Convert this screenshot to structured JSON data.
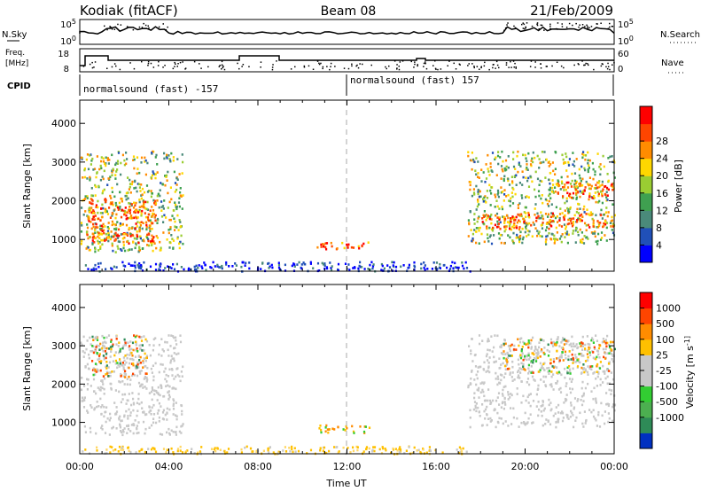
{
  "header": {
    "station": "Kodiak (fitACF)",
    "beam": "Beam 08",
    "date": "21/Feb/2009"
  },
  "strips": {
    "nsky_label": "N.Sky",
    "nsky_ticks": [
      "10^5",
      "10^0"
    ],
    "nsearch_label": "N.Search",
    "nsearch_ticks": [
      "10^5",
      "10^0"
    ],
    "freq_label_1": "Freq.",
    "freq_label_2": "[MHz]",
    "freq_ticks": [
      "18",
      "8"
    ],
    "nave_label": "Nave",
    "nave_ticks": [
      "60",
      "0"
    ],
    "cpid_label": "CPID",
    "cpid_segments": [
      "normalsound (fast) -157",
      "normalsound (fast) 157"
    ]
  },
  "chart_data": [
    {
      "type": "heatmap",
      "title": "",
      "xlabel": "",
      "ylabel": "Slant Range [km]",
      "x_ticks": [
        "00:00",
        "04:00",
        "08:00",
        "12:00",
        "16:00",
        "20:00",
        "00:00"
      ],
      "xlim_hours": [
        0,
        24
      ],
      "y_ticks": [
        1000,
        2000,
        3000,
        4000
      ],
      "ylim": [
        180,
        4600
      ],
      "colorbar_label": "Power [dB]",
      "colorbar_ticks": [
        "4",
        "8",
        "12",
        "16",
        "20",
        "24",
        "28"
      ],
      "colorbar_colors": [
        "#0000ff",
        "#2050b8",
        "#4a8a7a",
        "#3fa050",
        "#9acd32",
        "#ffd700",
        "#ff8c00",
        "#ff4500",
        "#ff0000"
      ],
      "regions": [
        {
          "t0": 0.0,
          "t1": 4.6,
          "r0": 700,
          "r1": 3300,
          "level": "mixed-high"
        },
        {
          "t0": 0.3,
          "t1": 3.5,
          "r0": 900,
          "r1": 2100,
          "level": "high"
        },
        {
          "t0": 10.6,
          "t1": 13.1,
          "r0": 750,
          "r1": 950,
          "level": "high"
        },
        {
          "t0": 0.0,
          "t1": 17.5,
          "r0": 200,
          "r1": 450,
          "level": "low"
        },
        {
          "t0": 17.4,
          "t1": 24.0,
          "r0": 900,
          "r1": 3300,
          "level": "mixed-high"
        },
        {
          "t0": 18.0,
          "t1": 24.0,
          "r0": 1300,
          "r1": 1700,
          "level": "high"
        },
        {
          "t0": 21.0,
          "t1": 24.0,
          "r0": 2100,
          "r1": 2500,
          "level": "high"
        }
      ]
    },
    {
      "type": "heatmap",
      "title": "",
      "xlabel": "Time UT",
      "ylabel": "Slant Range [km]",
      "x_ticks": [
        "00:00",
        "04:00",
        "08:00",
        "12:00",
        "16:00",
        "20:00",
        "00:00"
      ],
      "xlim_hours": [
        0,
        24
      ],
      "y_ticks": [
        1000,
        2000,
        3000,
        4000
      ],
      "ylim": [
        180,
        4600
      ],
      "colorbar_label": "Velocity [m s^-1]",
      "colorbar_ticks": [
        "1000",
        "500",
        "100",
        "25",
        "-25",
        "-100",
        "-500",
        "-1000"
      ],
      "colorbar_colors": [
        "#0030c0",
        "#2e8b57",
        "#4caf50",
        "#32cd32",
        "#c8c8c8",
        "#c8c8c8",
        "#ffc000",
        "#ff8c00",
        "#ff4500",
        "#ff0000"
      ],
      "regions": [
        {
          "t0": 0.0,
          "t1": 4.6,
          "r0": 700,
          "r1": 3300,
          "level": "ground-gray"
        },
        {
          "t0": 0.5,
          "t1": 3.0,
          "r0": 2200,
          "r1": 3300,
          "level": "mixed-pos"
        },
        {
          "t0": 10.6,
          "t1": 13.1,
          "r0": 750,
          "r1": 950,
          "level": "mixed"
        },
        {
          "t0": 0.0,
          "t1": 17.5,
          "r0": 200,
          "r1": 400,
          "level": "neg-yellow"
        },
        {
          "t0": 17.4,
          "t1": 24.0,
          "r0": 900,
          "r1": 3300,
          "level": "ground-gray"
        },
        {
          "t0": 19.0,
          "t1": 24.0,
          "r0": 2300,
          "r1": 3200,
          "level": "mixed-pos"
        }
      ]
    }
  ]
}
